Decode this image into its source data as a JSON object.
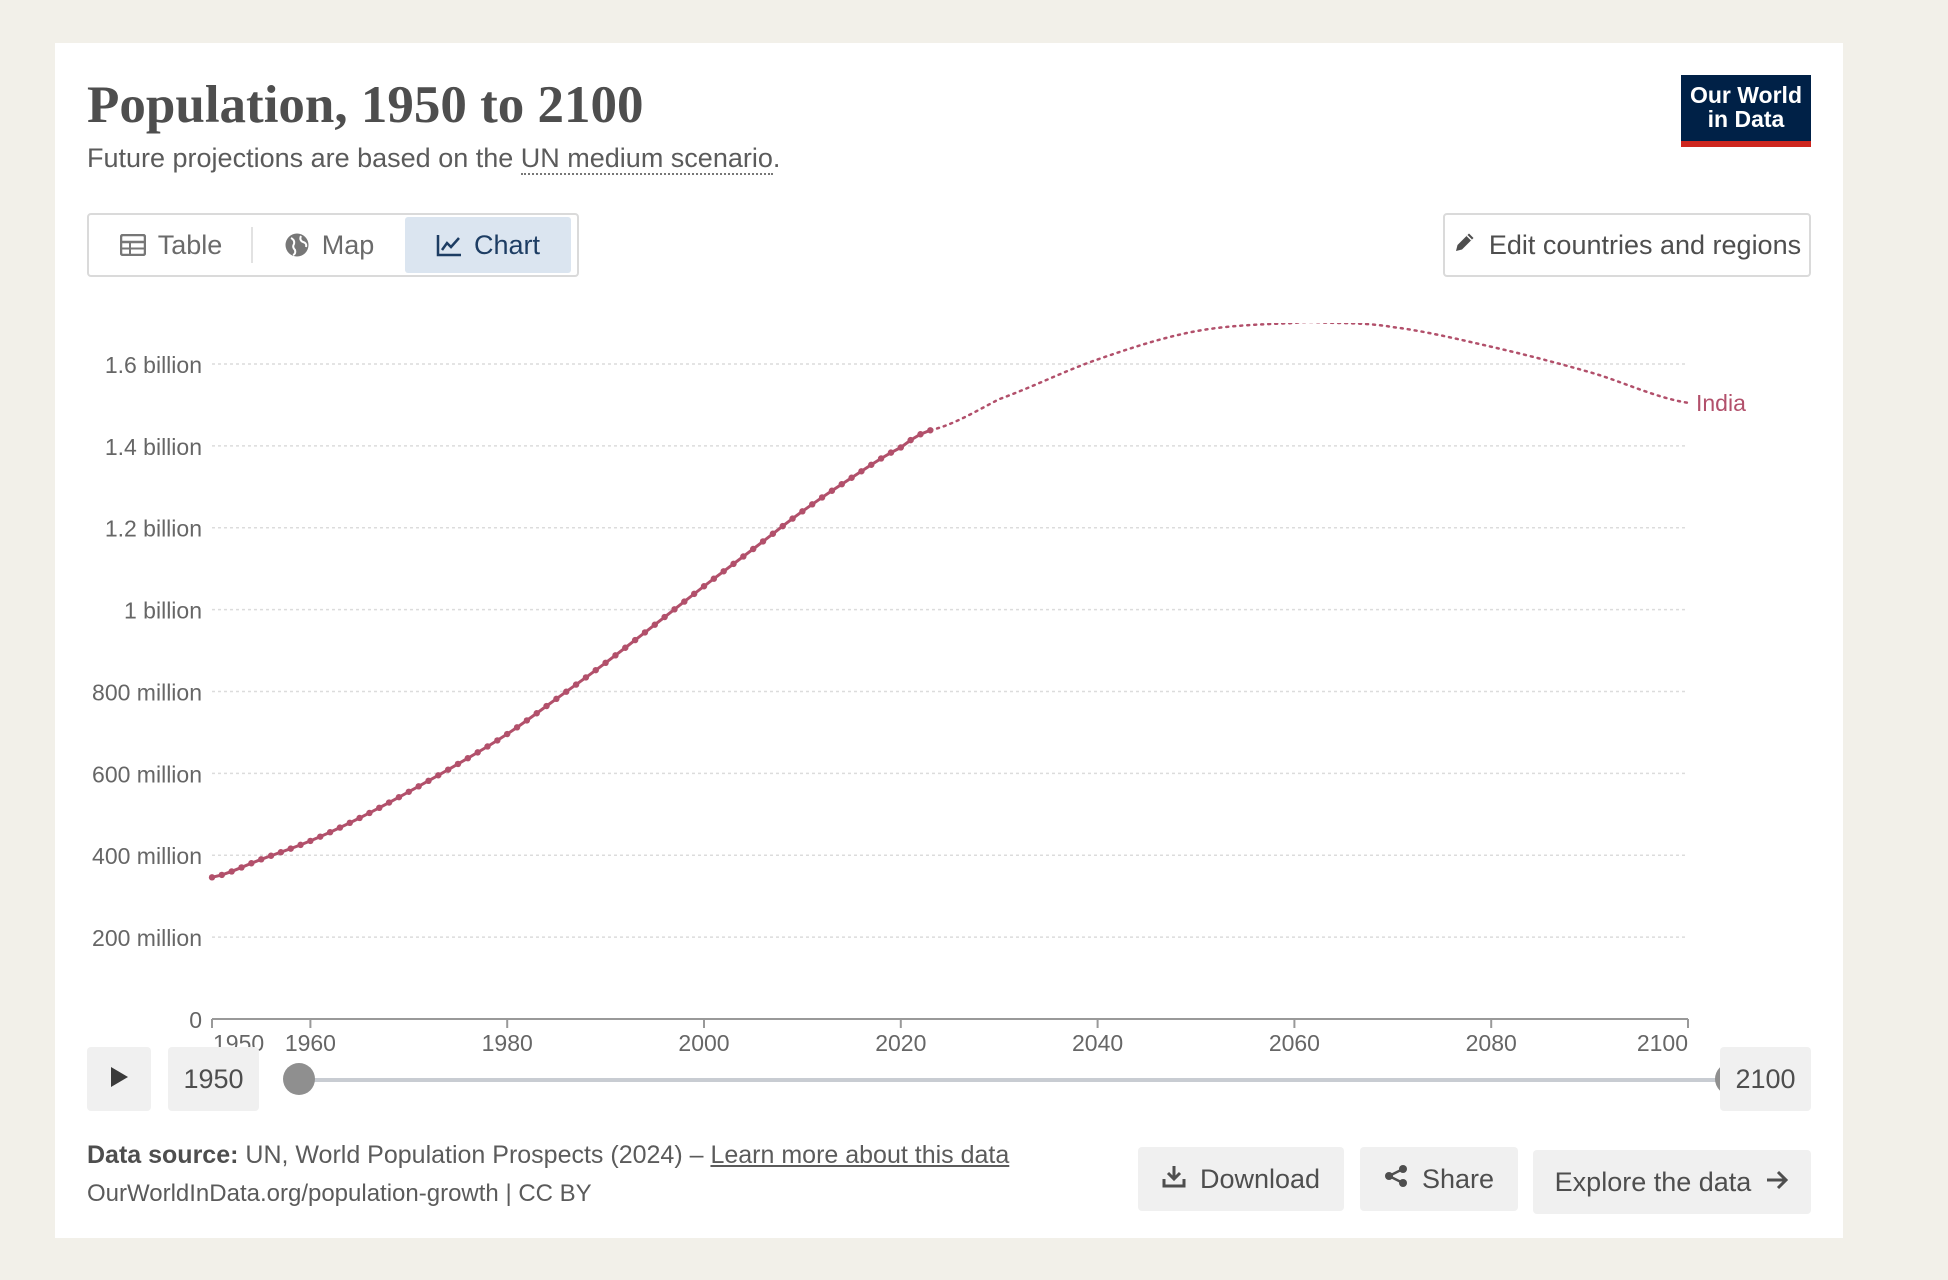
{
  "header": {
    "title": "Population, 1950 to 2100",
    "subtitle_prefix": "Future projections are based on the ",
    "subtitle_link": "UN medium scenario",
    "subtitle_suffix": ".",
    "logo_line1": "Our World",
    "logo_line2": "in Data"
  },
  "tabs": [
    {
      "label": "Table",
      "icon": "table-icon"
    },
    {
      "label": "Map",
      "icon": "globe-icon"
    },
    {
      "label": "Chart",
      "icon": "line-chart-icon",
      "active": true
    }
  ],
  "edit_button": {
    "label": "Edit countries and regions",
    "icon": "pencil-icon"
  },
  "timeline": {
    "start_label": "1950",
    "end_label": "2100",
    "start_year": 1950,
    "end_year": 2100
  },
  "footer": {
    "source_label": "Data source:",
    "source_text": " UN, World Population Prospects (2024) – ",
    "source_link": "Learn more about this data",
    "url_text": "OurWorldInData.org/population-growth | CC BY"
  },
  "actions": {
    "download": "Download",
    "share": "Share",
    "explore": "Explore the data"
  },
  "colors": {
    "series": "#b2506b",
    "accent": "#002147",
    "logo_stripe": "#ce261e"
  },
  "chart_data": {
    "type": "line",
    "xlabel": "",
    "ylabel": "",
    "xlim": [
      1950,
      2100
    ],
    "ylim": [
      0,
      1700000000
    ],
    "x_ticks": [
      1950,
      1960,
      1980,
      2000,
      2020,
      2040,
      2060,
      2080,
      2100
    ],
    "y_ticks": [
      {
        "value": 0,
        "label": "0"
      },
      {
        "value": 200000000,
        "label": "200 million"
      },
      {
        "value": 400000000,
        "label": "400 million"
      },
      {
        "value": 600000000,
        "label": "600 million"
      },
      {
        "value": 800000000,
        "label": "800 million"
      },
      {
        "value": 1000000000,
        "label": "1 billion"
      },
      {
        "value": 1200000000,
        "label": "1.2 billion"
      },
      {
        "value": 1400000000,
        "label": "1.4 billion"
      },
      {
        "value": 1600000000,
        "label": "1.6 billion"
      }
    ],
    "grid": true,
    "series": [
      {
        "name": "India",
        "color": "#b2506b",
        "historical": {
          "x": [
            1950,
            1955,
            1960,
            1965,
            1970,
            1975,
            1980,
            1985,
            1990,
            1995,
            2000,
            2005,
            2010,
            2015,
            2020,
            2023
          ],
          "y": [
            346000000,
            390000000,
            435000000,
            491000000,
            555000000,
            623000000,
            696000000,
            782000000,
            870000000,
            963000000,
            1057000000,
            1148000000,
            1240000000,
            1322000000,
            1396000000,
            1438000000
          ]
        },
        "projection": {
          "x": [
            2023,
            2030,
            2040,
            2050,
            2060,
            2063,
            2070,
            2080,
            2090,
            2100
          ],
          "y": [
            1438000000,
            1514000000,
            1611000000,
            1680000000,
            1700000000,
            1701000000,
            1690000000,
            1642000000,
            1580000000,
            1505000000
          ]
        }
      }
    ]
  }
}
